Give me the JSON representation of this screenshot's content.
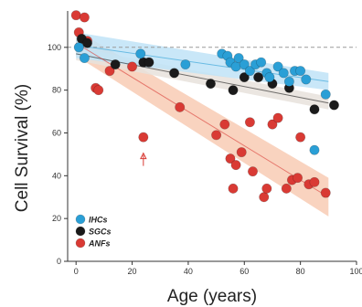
{
  "chart_data": {
    "type": "scatter",
    "title": "",
    "xlabel": "Age (years)",
    "ylabel": "Cell Survival (%)",
    "xlim": [
      -3,
      100
    ],
    "ylim": [
      0,
      117
    ],
    "x_ticks": [
      0,
      20,
      40,
      60,
      80,
      100
    ],
    "y_ticks": [
      0,
      20,
      40,
      60,
      80,
      100
    ],
    "x_tick_labels": [
      "0",
      "20",
      "40",
      "60",
      "80",
      "100"
    ],
    "y_tick_labels": [
      "0",
      "20",
      "40",
      "60",
      "80",
      "100"
    ],
    "reference_line": 100,
    "grid": false,
    "legend_position": "bottom-left",
    "series": [
      {
        "name": "IHCs",
        "color": "#2a9fd6",
        "band_color": "#bfe3f7",
        "fit": {
          "x0": 0,
          "y0": 101,
          "x1": 90,
          "y1": 84
        },
        "band_halfwidth": [
          6,
          4
        ],
        "points": [
          [
            1,
            100
          ],
          [
            3,
            95
          ],
          [
            23,
            97
          ],
          [
            39,
            92
          ],
          [
            52,
            97
          ],
          [
            54,
            96
          ],
          [
            55,
            93
          ],
          [
            57,
            91
          ],
          [
            58,
            95
          ],
          [
            60,
            92
          ],
          [
            62,
            89
          ],
          [
            64,
            92
          ],
          [
            66,
            93
          ],
          [
            68,
            88
          ],
          [
            69,
            86
          ],
          [
            72,
            91
          ],
          [
            74,
            88
          ],
          [
            76,
            84
          ],
          [
            78,
            89
          ],
          [
            80,
            89
          ],
          [
            82,
            85
          ],
          [
            85,
            52
          ],
          [
            89,
            78
          ]
        ]
      },
      {
        "name": "SGCs",
        "color": "#1a1a1a",
        "band_color": "#e7e2dc",
        "fit": {
          "x0": 0,
          "y0": 97,
          "x1": 90,
          "y1": 74
        },
        "band_halfwidth": [
          3,
          3
        ],
        "points": [
          [
            2,
            104
          ],
          [
            4,
            102
          ],
          [
            14,
            92
          ],
          [
            24,
            93
          ],
          [
            26,
            93
          ],
          [
            35,
            88
          ],
          [
            48,
            83
          ],
          [
            56,
            80
          ],
          [
            60,
            86
          ],
          [
            65,
            86
          ],
          [
            70,
            83
          ],
          [
            76,
            81
          ],
          [
            85,
            71
          ],
          [
            92,
            73
          ]
        ]
      },
      {
        "name": "ANFs",
        "color": "#d93a34",
        "band_color": "#f8cbb4",
        "fit": {
          "x0": 0,
          "y0": 102,
          "x1": 90,
          "y1": 30
        },
        "band_halfwidth": [
          6,
          9
        ],
        "points": [
          [
            0,
            115
          ],
          [
            1,
            107
          ],
          [
            3,
            114
          ],
          [
            4,
            103
          ],
          [
            7,
            81
          ],
          [
            8,
            80
          ],
          [
            12,
            89
          ],
          [
            20,
            91
          ],
          [
            24,
            58
          ],
          [
            37,
            72
          ],
          [
            50,
            59
          ],
          [
            53,
            64
          ],
          [
            55,
            48
          ],
          [
            56,
            34
          ],
          [
            57,
            45
          ],
          [
            59,
            51
          ],
          [
            62,
            65
          ],
          [
            63,
            42
          ],
          [
            67,
            30
          ],
          [
            68,
            34
          ],
          [
            70,
            64
          ],
          [
            72,
            67
          ],
          [
            75,
            34
          ],
          [
            77,
            38
          ],
          [
            79,
            39
          ],
          [
            80,
            58
          ],
          [
            83,
            36
          ],
          [
            85,
            37
          ],
          [
            89,
            32
          ]
        ],
        "annotation": {
          "x": 24,
          "y": 48,
          "kind": "arrow"
        }
      }
    ]
  }
}
